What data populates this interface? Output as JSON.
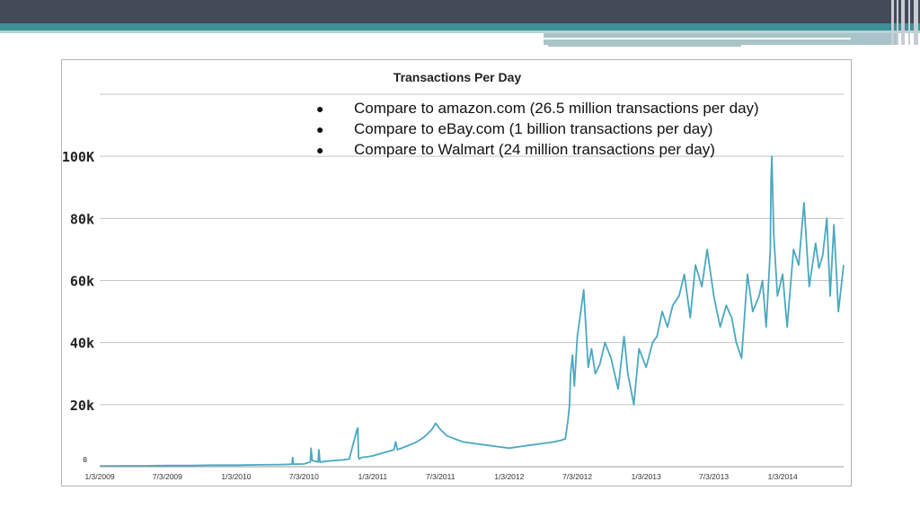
{
  "slide": {
    "colors": {
      "topbar": "#434a58",
      "teal": "#3e8f96",
      "line": "#4aa8c0",
      "grid": "#c4c4c4"
    },
    "bullets": [
      "Compare to amazon.com (26.5 million transactions per day)",
      "Compare to eBay.com (1 billion transactions per day)",
      "Compare to Walmart (24 million transactions per day)"
    ],
    "bullet_glyph": "●"
  },
  "chart_data": {
    "type": "line",
    "title": "Transactions Per Day",
    "xlabel": "",
    "ylabel": "",
    "x_tick_labels": [
      "1/3/2009",
      "7/3/2009",
      "1/3/2010",
      "7/3/2010",
      "1/3/2011",
      "7/3/2011",
      "1/3/2012",
      "7/3/2012",
      "1/3/2013",
      "7/3/2013",
      "1/3/2014"
    ],
    "y_tick_labels": [
      "0",
      "20k",
      "40k",
      "60k",
      "80k",
      "100K"
    ],
    "y_ticks": [
      0,
      20000,
      40000,
      60000,
      80000,
      100000
    ],
    "ylim": [
      0,
      120000
    ],
    "xlim": [
      "2009-01-03",
      "2014-06-15"
    ],
    "grid": true,
    "legend": "none",
    "series": [
      {
        "x": [
          "2009-01-03",
          "2009-03-01",
          "2009-05-01",
          "2009-07-03",
          "2009-09-01",
          "2009-11-01",
          "2010-01-03",
          "2010-03-01",
          "2010-05-01",
          "2010-06-01",
          "2010-06-03",
          "2010-06-05",
          "2010-07-03",
          "2010-07-20",
          "2010-07-22",
          "2010-07-25",
          "2010-08-10",
          "2010-08-12",
          "2010-08-15",
          "2010-09-01",
          "2010-10-15",
          "2010-11-01",
          "2010-11-22",
          "2010-11-24",
          "2010-11-26",
          "2010-11-28",
          "2010-12-05",
          "2010-12-20",
          "2011-01-03",
          "2011-02-01",
          "2011-02-15",
          "2011-03-01",
          "2011-03-05",
          "2011-03-10",
          "2011-04-01",
          "2011-05-01",
          "2011-05-20",
          "2011-06-10",
          "2011-06-20",
          "2011-07-03",
          "2011-07-20",
          "2011-08-10",
          "2011-09-01",
          "2011-10-01",
          "2011-11-01",
          "2011-12-01",
          "2012-01-03",
          "2012-02-01",
          "2012-03-01",
          "2012-04-01",
          "2012-05-01",
          "2012-05-20",
          "2012-06-01",
          "2012-06-08",
          "2012-06-12",
          "2012-06-15",
          "2012-06-20",
          "2012-06-25",
          "2012-07-03",
          "2012-07-10",
          "2012-07-20",
          "2012-08-01",
          "2012-08-10",
          "2012-08-20",
          "2012-09-01",
          "2012-09-15",
          "2012-10-01",
          "2012-10-20",
          "2012-11-05",
          "2012-11-15",
          "2012-12-01",
          "2012-12-15",
          "2013-01-03",
          "2013-01-20",
          "2013-02-01",
          "2013-02-15",
          "2013-03-01",
          "2013-03-15",
          "2013-04-01",
          "2013-04-15",
          "2013-05-01",
          "2013-05-15",
          "2013-06-01",
          "2013-06-15",
          "2013-07-03",
          "2013-07-20",
          "2013-08-05",
          "2013-08-20",
          "2013-09-01",
          "2013-09-15",
          "2013-10-01",
          "2013-10-15",
          "2013-11-01",
          "2013-11-10",
          "2013-11-20",
          "2013-12-01",
          "2013-12-03",
          "2013-12-05",
          "2013-12-10",
          "2013-12-20",
          "2014-01-03",
          "2014-01-15",
          "2014-02-01",
          "2014-02-15",
          "2014-03-01",
          "2014-03-15",
          "2014-04-01",
          "2014-04-10",
          "2014-04-20",
          "2014-05-01",
          "2014-05-10",
          "2014-05-20",
          "2014-06-01",
          "2014-06-15"
        ],
        "y": [
          200,
          300,
          300,
          400,
          400,
          500,
          500,
          600,
          700,
          800,
          3000,
          800,
          900,
          1500,
          6000,
          2000,
          1500,
          5500,
          1500,
          1800,
          2200,
          2500,
          12000,
          12500,
          3000,
          2500,
          3000,
          3200,
          3500,
          4500,
          5000,
          5500,
          8000,
          5500,
          6500,
          8000,
          9500,
          12000,
          14000,
          12000,
          10000,
          9000,
          8000,
          7500,
          7000,
          6500,
          6000,
          6500,
          7000,
          7500,
          8000,
          8500,
          9000,
          15000,
          20000,
          30000,
          36000,
          26000,
          42000,
          48000,
          57000,
          32000,
          38000,
          30000,
          33000,
          40000,
          35000,
          25000,
          42000,
          30000,
          20000,
          38000,
          32000,
          40000,
          42000,
          50000,
          45000,
          52000,
          55000,
          62000,
          48000,
          65000,
          58000,
          70000,
          55000,
          45000,
          52000,
          48000,
          40000,
          35000,
          62000,
          50000,
          55000,
          60000,
          45000,
          70000,
          92000,
          100000,
          75000,
          55000,
          62000,
          45000,
          70000,
          65000,
          85000,
          58000,
          72000,
          64000,
          68000,
          80000,
          55000,
          78000,
          50000,
          65000
        ]
      }
    ]
  }
}
